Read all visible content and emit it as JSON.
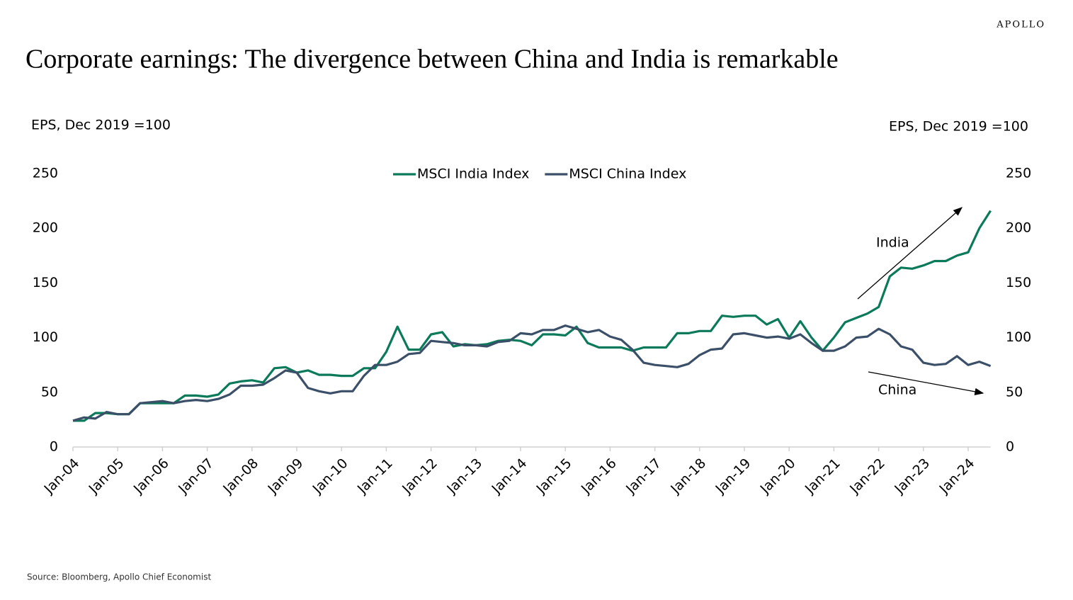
{
  "chart_data": {
    "type": "line",
    "title": "Corporate earnings: The divergence between China and India is remarkable",
    "brand": "APOLLO",
    "y_axis_label": "EPS, Dec 2019 =100",
    "y2_axis_label": "EPS, Dec 2019 =100",
    "source": "Source: Bloomberg, Apollo Chief Economist",
    "annotations": [
      "India",
      "China"
    ],
    "categories": [
      "Jan-04",
      null,
      null,
      null,
      "Jan-05",
      null,
      null,
      null,
      "Jan-06",
      null,
      null,
      null,
      "Jan-07",
      null,
      null,
      null,
      "Jan-08",
      null,
      null,
      null,
      "Jan-09",
      null,
      null,
      null,
      "Jan-10",
      null,
      null,
      null,
      "Jan-11",
      null,
      null,
      null,
      "Jan-12",
      null,
      null,
      null,
      "Jan-13",
      null,
      null,
      null,
      "Jan-14",
      null,
      null,
      null,
      "Jan-15",
      null,
      null,
      null,
      "Jan-16",
      null,
      null,
      null,
      "Jan-17",
      null,
      null,
      null,
      "Jan-18",
      null,
      null,
      null,
      "Jan-19",
      null,
      null,
      null,
      "Jan-20",
      null,
      null,
      null,
      "Jan-21",
      null,
      null,
      null,
      "Jan-22",
      null,
      null,
      null,
      "Jan-23",
      null,
      null,
      null,
      "Jan-24",
      null,
      null
    ],
    "series": [
      {
        "name": "MSCI India Index",
        "color": "#0b7a5a",
        "values": [
          24,
          24,
          31,
          31,
          30,
          30,
          40,
          40,
          40,
          40,
          47,
          47,
          46,
          48,
          58,
          60,
          61,
          59,
          72,
          73,
          68,
          70,
          66,
          66,
          65,
          65,
          72,
          72,
          87,
          110,
          89,
          89,
          103,
          105,
          92,
          94,
          93,
          94,
          97,
          98,
          97,
          93,
          103,
          103,
          102,
          110,
          95,
          91,
          91,
          91,
          88,
          91,
          91,
          91,
          104,
          104,
          106,
          106,
          120,
          119,
          120,
          120,
          112,
          117,
          100,
          115,
          100,
          88,
          100,
          114,
          118,
          122,
          128,
          156,
          164,
          163,
          166,
          170,
          170,
          175,
          178,
          200,
          216
        ]
      },
      {
        "name": "MSCI China Index",
        "color": "#3b5068",
        "values": [
          24,
          27,
          26,
          32,
          30,
          30,
          40,
          41,
          42,
          40,
          42,
          43,
          42,
          44,
          48,
          56,
          56,
          57,
          63,
          70,
          68,
          54,
          51,
          49,
          51,
          51,
          65,
          75,
          75,
          78,
          85,
          86,
          97,
          96,
          95,
          93,
          93,
          92,
          96,
          97,
          104,
          103,
          107,
          107,
          111,
          108,
          105,
          107,
          101,
          98,
          89,
          77,
          75,
          74,
          73,
          76,
          84,
          89,
          90,
          103,
          104,
          102,
          100,
          101,
          99,
          103,
          95,
          88,
          88,
          92,
          100,
          101,
          108,
          103,
          92,
          89,
          77,
          75,
          76,
          83,
          75,
          78,
          74
        ]
      }
    ],
    "ylim": [
      0,
      250
    ],
    "yticks": [
      0,
      50,
      100,
      150,
      200,
      250
    ],
    "y2lim": [
      0,
      250
    ],
    "y2ticks": [
      0,
      50,
      100,
      150,
      200,
      250
    ],
    "legend": "top"
  }
}
